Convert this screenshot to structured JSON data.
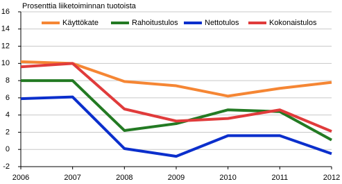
{
  "chart_data": {
    "type": "line",
    "title": "Prosenttia liiketoiminnan tuotoista",
    "x": [
      2006,
      2007,
      2008,
      2009,
      2010,
      2011,
      2012
    ],
    "xlim": [
      2006,
      2012
    ],
    "xticks": [
      2006,
      2007,
      2008,
      2009,
      2010,
      2011,
      2012
    ],
    "ylim": [
      -2,
      16
    ],
    "yticks": [
      -2,
      0,
      2,
      4,
      6,
      8,
      10,
      12,
      14,
      16
    ],
    "grid": true,
    "legend": "top",
    "series": [
      {
        "name": "Käyttökate",
        "color": "#f58634",
        "values": [
          10.2,
          10.0,
          7.9,
          7.4,
          6.2,
          7.1,
          7.8
        ]
      },
      {
        "name": "Rahoitustulos",
        "color": "#237a23",
        "values": [
          8.0,
          8.0,
          2.2,
          3.0,
          4.6,
          4.4,
          1.1
        ]
      },
      {
        "name": "Nettotulos",
        "color": "#0b2fcc",
        "values": [
          5.9,
          6.1,
          0.1,
          -0.8,
          1.6,
          1.6,
          -0.5
        ]
      },
      {
        "name": "Kokonaistulos",
        "color": "#e03b3b",
        "values": [
          9.6,
          10.0,
          4.7,
          3.3,
          3.6,
          4.6,
          2.1
        ]
      }
    ]
  }
}
